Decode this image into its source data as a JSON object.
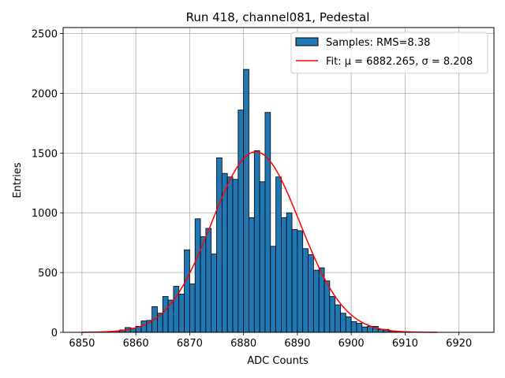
{
  "chart_data": {
    "type": "bar",
    "title": "Run 418, channel081, Pedestal",
    "xlabel": "ADC Counts",
    "ylabel": "Entries",
    "xlim": [
      6846.5,
      6926.5
    ],
    "ylim": [
      0,
      2550
    ],
    "xticks": [
      6850,
      6860,
      6870,
      6880,
      6890,
      6900,
      6910,
      6920
    ],
    "yticks": [
      0,
      500,
      1000,
      1500,
      2000,
      2500
    ],
    "grid": true,
    "legend_position": "top-right",
    "colors": {
      "bars": "#1f77b4",
      "bar_edge": "#000000",
      "fit": "#ff0000",
      "grid": "#b0b0b0"
    },
    "series": [
      {
        "name": "Samples: RMS=8.38",
        "kind": "histogram",
        "bin_width": 1,
        "bin_left_edges": [
          6855,
          6856,
          6857,
          6858,
          6859,
          6860,
          6861,
          6862,
          6863,
          6864,
          6865,
          6866,
          6867,
          6868,
          6869,
          6870,
          6871,
          6872,
          6873,
          6874,
          6875,
          6876,
          6877,
          6878,
          6879,
          6880,
          6881,
          6882,
          6883,
          6884,
          6885,
          6886,
          6887,
          6888,
          6889,
          6890,
          6891,
          6892,
          6893,
          6894,
          6895,
          6896,
          6897,
          6898,
          6899,
          6900,
          6901,
          6902,
          6903,
          6904,
          6905,
          6906,
          6907,
          6908,
          6909,
          6910,
          6911,
          6912,
          6913,
          6914,
          6915
        ],
        "values": [
          5,
          10,
          20,
          40,
          35,
          50,
          95,
          100,
          215,
          160,
          300,
          270,
          385,
          320,
          690,
          405,
          950,
          800,
          870,
          655,
          1460,
          1330,
          1300,
          1280,
          1860,
          2200,
          960,
          1520,
          1260,
          1840,
          720,
          1300,
          960,
          1000,
          860,
          850,
          700,
          650,
          520,
          540,
          430,
          300,
          230,
          160,
          130,
          90,
          75,
          45,
          50,
          50,
          25,
          25,
          10,
          5,
          5,
          5,
          0,
          0,
          0,
          0,
          0
        ]
      },
      {
        "name": "Fit: μ = 6882.265, σ = 8.208",
        "kind": "gaussian",
        "mu": 6882.265,
        "sigma": 8.208,
        "amplitude": 1510,
        "x_range": [
          6850,
          6916
        ]
      }
    ]
  }
}
